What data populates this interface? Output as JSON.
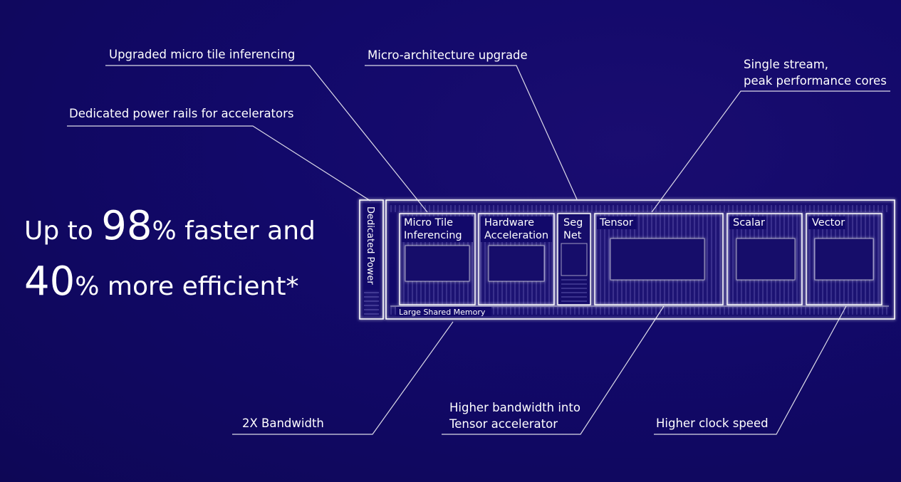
{
  "headline": {
    "line1": {
      "prefix": "Up to ",
      "number": "98",
      "percent": "%",
      "suffix": " faster and"
    },
    "line2": {
      "number": "40",
      "percent": "%",
      "suffix": " more efficient*"
    }
  },
  "callouts": {
    "micro_tile": "Upgraded micro tile inferencing",
    "micro_arch": "Micro-architecture upgrade",
    "single_stream_1": "Single stream,",
    "single_stream_2": "peak performance cores",
    "power_rails": "Dedicated power rails for accelerators",
    "bandwidth": "2X Bandwidth",
    "tensor_bw_1": "Higher bandwidth into",
    "tensor_bw_2": "Tensor accelerator",
    "clock": "Higher clock speed"
  },
  "blocks": {
    "dedicated_power": "Dedicated Power",
    "micro_tile_1": "Micro Tile",
    "micro_tile_2": "Inferencing",
    "hw_accel_1": "Hardware",
    "hw_accel_2": "Acceleration",
    "seg_1": "Seg",
    "seg_2": "Net",
    "tensor": "Tensor",
    "scalar": "Scalar",
    "vector": "Vector",
    "memory": "Large Shared Memory"
  },
  "colors": {
    "background": "#12096a",
    "line": "#ffffff",
    "glow": "#b9b4ff"
  }
}
